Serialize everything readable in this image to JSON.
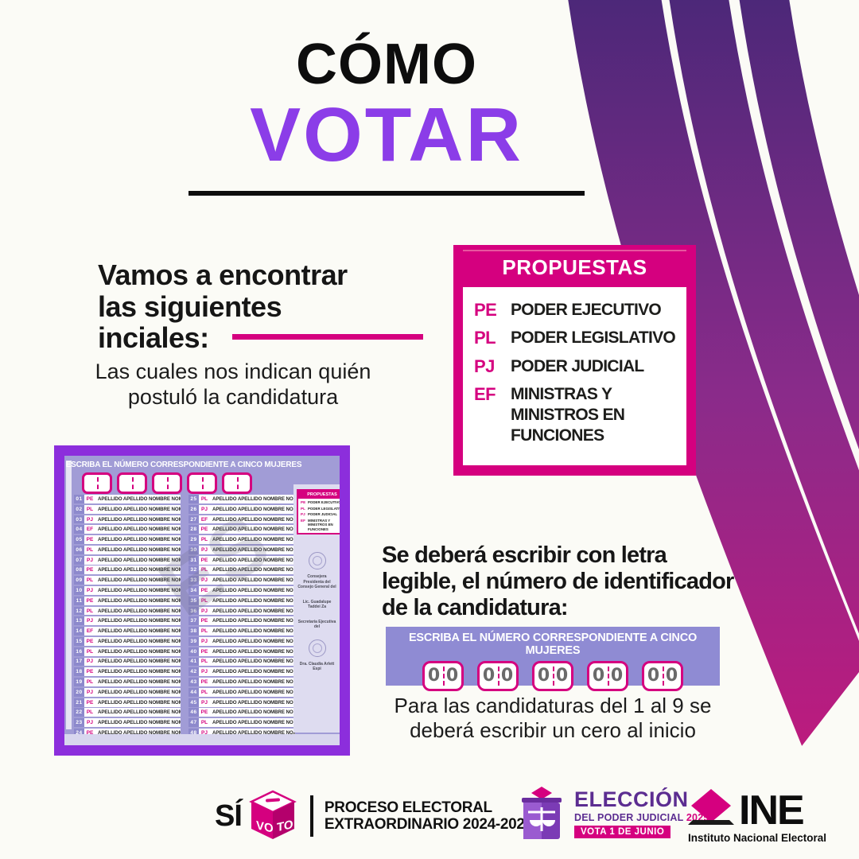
{
  "colors": {
    "pink": "#D5007F",
    "purple": "#8B3DE8",
    "deep_purple": "#5C2D91",
    "frame_purple": "#8C2EDC",
    "lavender": "#A19CD6",
    "lavender_dark": "#8F8AD0",
    "stripe_top": "#4A2878",
    "stripe_mid": "#8A2B8A",
    "stripe_bottom": "#C4187C"
  },
  "title": {
    "top": "CÓMO",
    "main": "VOTAR"
  },
  "intro": {
    "heading_lines": [
      "Vamos a encontrar",
      "las siguientes",
      "inciales:"
    ],
    "subtext_lines": [
      "Las cuales nos indican quién",
      "postuló la candidatura"
    ]
  },
  "propuestas": {
    "header": "PROPUESTAS",
    "items": [
      {
        "abbr": "PE",
        "label": "PODER EJECUTIVO"
      },
      {
        "abbr": "PL",
        "label": "PODER LEGISLATIVO"
      },
      {
        "abbr": "PJ",
        "label": "PODER JUDICIAL"
      },
      {
        "abbr": "EF",
        "label": "MINISTRAS Y MINISTROS EN FUNCIONES"
      }
    ]
  },
  "ballot": {
    "header": "ESCRIBA EL NÚMERO CORRESPONDIENTE A CINCO MUJERES",
    "write_boxes": 5,
    "candidate_name": "APELLIDO APELLIDO NOMBRE NOMBRE",
    "watermark": "ES",
    "mini_propuestas_header": "PROPUESTAS",
    "candidates": [
      {
        "n": "01",
        "a": "PE"
      },
      {
        "n": "02",
        "a": "PL"
      },
      {
        "n": "03",
        "a": "PJ"
      },
      {
        "n": "04",
        "a": "EF"
      },
      {
        "n": "05",
        "a": "PE"
      },
      {
        "n": "06",
        "a": "PL"
      },
      {
        "n": "07",
        "a": "PJ"
      },
      {
        "n": "08",
        "a": "PE"
      },
      {
        "n": "09",
        "a": "PL"
      },
      {
        "n": "10",
        "a": "PJ"
      },
      {
        "n": "11",
        "a": "PE"
      },
      {
        "n": "12",
        "a": "PL"
      },
      {
        "n": "13",
        "a": "PJ"
      },
      {
        "n": "14",
        "a": "EF"
      },
      {
        "n": "15",
        "a": "PE"
      },
      {
        "n": "16",
        "a": "PL"
      },
      {
        "n": "17",
        "a": "PJ"
      },
      {
        "n": "18",
        "a": "PE"
      },
      {
        "n": "19",
        "a": "PL"
      },
      {
        "n": "20",
        "a": "PJ"
      },
      {
        "n": "21",
        "a": "PE"
      },
      {
        "n": "22",
        "a": "PL"
      },
      {
        "n": "23",
        "a": "PJ"
      },
      {
        "n": "24",
        "a": "PE"
      },
      {
        "n": "25",
        "a": "PL"
      },
      {
        "n": "26",
        "a": "PJ"
      },
      {
        "n": "27",
        "a": "EF"
      },
      {
        "n": "28",
        "a": "PE"
      },
      {
        "n": "29",
        "a": "PL"
      },
      {
        "n": "30",
        "a": "PJ"
      },
      {
        "n": "31",
        "a": "PE"
      },
      {
        "n": "32",
        "a": "PL"
      },
      {
        "n": "33",
        "a": "PJ"
      },
      {
        "n": "34",
        "a": "PE"
      },
      {
        "n": "35",
        "a": "PL"
      },
      {
        "n": "36",
        "a": "PJ"
      },
      {
        "n": "37",
        "a": "PE"
      },
      {
        "n": "38",
        "a": "PL"
      },
      {
        "n": "39",
        "a": "PJ"
      },
      {
        "n": "40",
        "a": "PE"
      },
      {
        "n": "41",
        "a": "PL"
      },
      {
        "n": "42",
        "a": "PJ"
      },
      {
        "n": "43",
        "a": "PE"
      },
      {
        "n": "44",
        "a": "PL"
      },
      {
        "n": "45",
        "a": "PJ"
      },
      {
        "n": "46",
        "a": "PE"
      },
      {
        "n": "47",
        "a": "PL"
      },
      {
        "n": "48",
        "a": "PJ"
      }
    ],
    "sidebar": [
      {
        "type": "seal"
      },
      {
        "type": "text",
        "text": "Consejera Presidenta del Consejo General del"
      },
      {
        "type": "text",
        "text": "Lic. Guadalupe Taddei Za"
      },
      {
        "type": "text",
        "text": "Secretaría Ejecutiva del"
      },
      {
        "type": "seal"
      },
      {
        "type": "text",
        "text": "Dra. Claudia Arlett Espi"
      }
    ]
  },
  "instruction": {
    "heading_lines": [
      "Se deberá escribir con letra",
      "legible, el número de identificador",
      "de la candidatura:"
    ],
    "banner_header": "ESCRIBA EL NÚMERO CORRESPONDIENTE A CINCO MUJERES",
    "banner_boxes": 5,
    "box_digits": [
      "0",
      "0"
    ],
    "note_lines": [
      "Para las candidaturas del 1 al 9 se",
      "deberá escribir un cero al inicio"
    ]
  },
  "footer": {
    "si": "SÍ",
    "cube_left": "VO",
    "cube_right": "TO",
    "process_lines": [
      "PROCESO ELECTORAL",
      "EXTRAORDINARIO 2024-2025"
    ],
    "eleccion": {
      "title": "ELECCIÓN",
      "subtitle": "DEL PODER JUDICIAL",
      "year": "2025",
      "badge": "VOTA 1 DE JUNIO"
    },
    "ine": {
      "acronym": "INE",
      "name": "Instituto Nacional Electoral"
    }
  }
}
